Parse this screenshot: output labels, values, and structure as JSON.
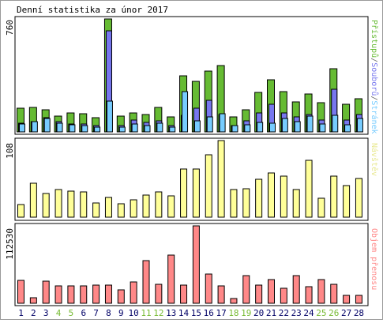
{
  "title": "Denní statistika za únor 2017",
  "colors": {
    "hits": "#66bb33",
    "files": "#7777ee",
    "pages": "#77ccff",
    "visits": "#ffff99",
    "kbytes": "#ff8888",
    "weekend": "#77bb33",
    "weekday": "#000066"
  },
  "chart_data": [
    {
      "type": "bar",
      "panel": "top",
      "ymax_label": "760",
      "ylim": [
        0,
        760
      ],
      "side_label": {
        "parts": [
          {
            "text": "Přístupů",
            "color": "#66bb33"
          },
          {
            "text": "/",
            "color": "#666666"
          },
          {
            "text": "Souborů",
            "color": "#7777ee"
          },
          {
            "text": "/",
            "color": "#666666"
          },
          {
            "text": "Stránek",
            "color": "#77ccff"
          }
        ]
      },
      "categories": [
        "1",
        "2",
        "3",
        "4",
        "5",
        "6",
        "7",
        "8",
        "9",
        "10",
        "11",
        "12",
        "13",
        "14",
        "15",
        "16",
        "17",
        "18",
        "19",
        "20",
        "21",
        "22",
        "23",
        "24",
        "25",
        "26",
        "27",
        "28"
      ],
      "series": [
        {
          "name": "Přístupů",
          "values": [
            160,
            165,
            150,
            105,
            125,
            120,
            95,
            760,
            105,
            130,
            115,
            165,
            100,
            375,
            340,
            410,
            445,
            100,
            150,
            265,
            350,
            270,
            200,
            255,
            195,
            425,
            185,
            225
          ]
        },
        {
          "name": "Souborů",
          "values": [
            60,
            70,
            95,
            70,
            55,
            55,
            40,
            680,
            45,
            80,
            65,
            75,
            45,
            110,
            160,
            215,
            115,
            45,
            75,
            130,
            185,
            125,
            100,
            115,
            80,
            285,
            80,
            115
          ]
        },
        {
          "name": "Stránek",
          "values": [
            55,
            70,
            90,
            60,
            50,
            45,
            30,
            205,
            30,
            55,
            40,
            60,
            30,
            270,
            75,
            100,
            120,
            40,
            50,
            65,
            60,
            90,
            70,
            105,
            55,
            110,
            50,
            90
          ]
        }
      ]
    },
    {
      "type": "bar",
      "panel": "middle",
      "ymax_label": "108",
      "ylim": [
        0,
        108
      ],
      "side_label": {
        "parts": [
          {
            "text": "Návštěv",
            "color": "#e8e890"
          }
        ]
      },
      "categories": [
        "1",
        "2",
        "3",
        "4",
        "5",
        "6",
        "7",
        "8",
        "9",
        "10",
        "11",
        "12",
        "13",
        "14",
        "15",
        "16",
        "17",
        "18",
        "19",
        "20",
        "21",
        "22",
        "23",
        "24",
        "25",
        "26",
        "27",
        "28"
      ],
      "series": [
        {
          "name": "Návštěv",
          "values": [
            18,
            48,
            33,
            39,
            37,
            36,
            20,
            28,
            19,
            25,
            31,
            36,
            30,
            68,
            68,
            88,
            108,
            39,
            40,
            53,
            62,
            58,
            39,
            80,
            27,
            58,
            44,
            54
          ]
        }
      ]
    },
    {
      "type": "bar",
      "panel": "bottom",
      "ymax_label": "112530",
      "ylim": [
        0,
        112530
      ],
      "side_label": {
        "parts": [
          {
            "text": "Objem přenosu",
            "color": "#ff8888"
          }
        ]
      },
      "categories": [
        "1",
        "2",
        "3",
        "4",
        "5",
        "6",
        "7",
        "8",
        "9",
        "10",
        "11",
        "12",
        "13",
        "14",
        "15",
        "16",
        "17",
        "18",
        "19",
        "20",
        "21",
        "22",
        "23",
        "24",
        "25",
        "26",
        "27",
        "28"
      ],
      "series": [
        {
          "name": "Objem přenosu",
          "values": [
            33000,
            8000,
            32500,
            25000,
            25000,
            25500,
            26000,
            26000,
            20000,
            31000,
            62000,
            27000,
            70000,
            26000,
            112530,
            42000,
            25000,
            7000,
            40000,
            26000,
            34000,
            22000,
            40000,
            24000,
            35000,
            28000,
            11000,
            12000
          ]
        }
      ]
    }
  ],
  "x_labels": [
    {
      "text": "1",
      "weekend": false
    },
    {
      "text": "2",
      "weekend": false
    },
    {
      "text": "3",
      "weekend": false
    },
    {
      "text": "4",
      "weekend": true
    },
    {
      "text": "5",
      "weekend": true
    },
    {
      "text": "6",
      "weekend": false
    },
    {
      "text": "7",
      "weekend": false
    },
    {
      "text": "8",
      "weekend": false
    },
    {
      "text": "9",
      "weekend": false
    },
    {
      "text": "10",
      "weekend": false
    },
    {
      "text": "11",
      "weekend": true
    },
    {
      "text": "12",
      "weekend": true
    },
    {
      "text": "13",
      "weekend": false
    },
    {
      "text": "14",
      "weekend": false
    },
    {
      "text": "15",
      "weekend": false
    },
    {
      "text": "16",
      "weekend": false
    },
    {
      "text": "17",
      "weekend": false
    },
    {
      "text": "18",
      "weekend": true
    },
    {
      "text": "19",
      "weekend": true
    },
    {
      "text": "20",
      "weekend": false
    },
    {
      "text": "21",
      "weekend": false
    },
    {
      "text": "22",
      "weekend": false
    },
    {
      "text": "23",
      "weekend": false
    },
    {
      "text": "24",
      "weekend": false
    },
    {
      "text": "25",
      "weekend": true
    },
    {
      "text": "26",
      "weekend": true
    },
    {
      "text": "27",
      "weekend": false
    },
    {
      "text": "28",
      "weekend": false
    }
  ]
}
